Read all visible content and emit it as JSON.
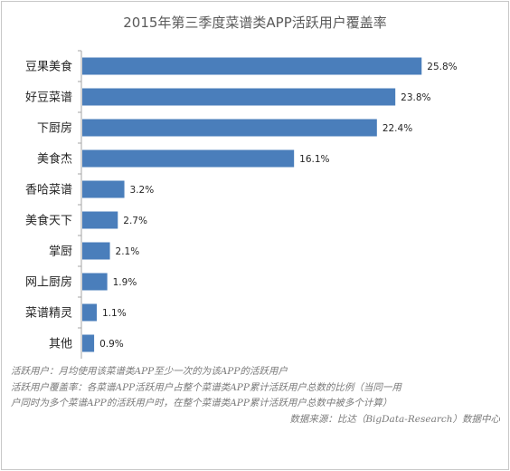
{
  "chart_data": {
    "type": "bar",
    "orientation": "horizontal",
    "title": "2015年第三季度菜谱类APP活跃用户覆盖率",
    "categories": [
      "豆果美食",
      "好豆菜谱",
      "下厨房",
      "美食杰",
      "香哈菜谱",
      "美食天下",
      "掌厨",
      "网上厨房",
      "菜谱精灵",
      "其他"
    ],
    "values": [
      25.8,
      23.8,
      22.4,
      16.1,
      3.2,
      2.7,
      2.1,
      1.9,
      1.1,
      0.9
    ],
    "value_labels": [
      "25.8%",
      "23.8%",
      "22.4%",
      "16.1%",
      "3.2%",
      "2.7%",
      "2.1%",
      "1.9%",
      "1.1%",
      "0.9%"
    ],
    "xlim": [
      0,
      27.5
    ],
    "bar_color": "#4a7ebb",
    "grid": false,
    "legend": "none"
  },
  "notes": {
    "line1": "活跃用户：月均使用该菜谱类APP至少一次的为该APP的活跃用户",
    "line2": "活跃用户覆盖率：各菜谱APP活跃用户占整个菜谱类APP累计活跃用户总数的比例（当同一用",
    "line3": "户同时为多个菜谱APP的活跃用户时，在整个菜谱类APP累计活跃用户总数中被多个计算）",
    "source": "数据来源：比达（BigData-Research）数据中心"
  }
}
